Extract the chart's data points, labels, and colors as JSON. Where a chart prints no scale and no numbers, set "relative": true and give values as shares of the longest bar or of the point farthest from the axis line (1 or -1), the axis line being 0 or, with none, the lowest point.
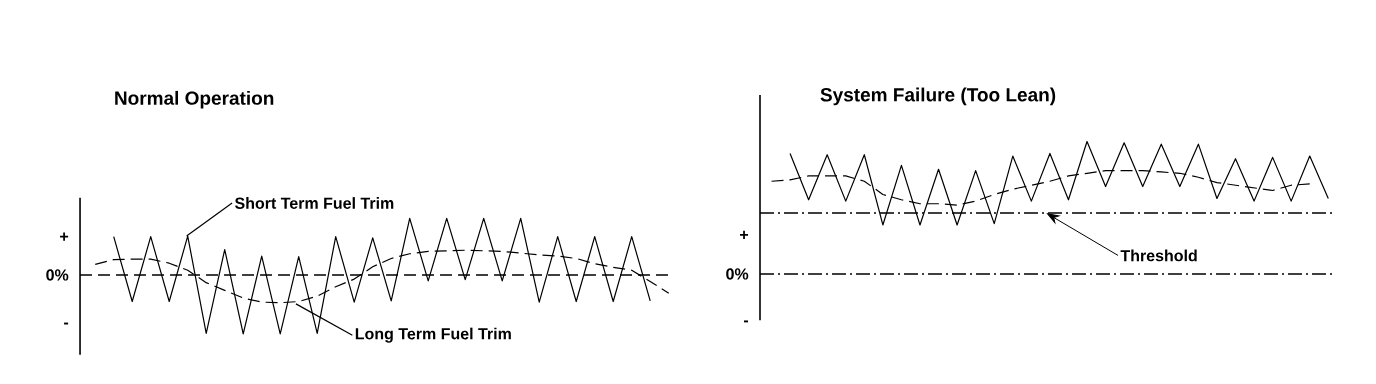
{
  "chart_data": [
    {
      "type": "line",
      "title": "Normal Operation",
      "relative": true,
      "legend": false,
      "categories": [
        null,
        null,
        null,
        null,
        null,
        null,
        null,
        null,
        null,
        null,
        null,
        null,
        null,
        null,
        null,
        null,
        null,
        null,
        null,
        null,
        null,
        null,
        null,
        null,
        null,
        null,
        null,
        null,
        null,
        null,
        null,
        null
      ],
      "series": [
        {
          "color": "#000000",
          "line_style": "solid",
          "values": [
            null,
            0.65,
            -0.45,
            0.65,
            -0.45,
            0.66,
            -0.99,
            0.43,
            -1,
            0.32,
            -1,
            0.31,
            -0.99,
            0.65,
            -0.46,
            0.63,
            -0.44,
            0.96,
            -0.1,
            0.96,
            -0.08,
            0.96,
            -0.1,
            0.96,
            -0.46,
            0.65,
            -0.45,
            0.65,
            -0.45,
            0.65,
            -0.44,
            null
          ]
        },
        {
          "color": "#000000",
          "line_style": "dashed",
          "values": [
            0.18,
            0.26,
            0.27,
            0.27,
            0.2,
            0.08,
            -0.13,
            -0.26,
            -0.39,
            -0.46,
            -0.47,
            -0.45,
            -0.36,
            -0.2,
            -0.07,
            0.14,
            0.28,
            0.36,
            0.4,
            0.41,
            0.42,
            0.41,
            0.4,
            0.37,
            0.34,
            0.32,
            0.28,
            0.19,
            0.13,
            0.08,
            -0.11,
            -0.31
          ]
        }
      ],
      "ref_lines": [
        {
          "axis": "y",
          "value": 0,
          "line_style": "dashed",
          "color": "#000000"
        }
      ],
      "annotations": [
        "+",
        "0%",
        "-",
        "Short Term Fuel Trim",
        "Long Term Fuel Trim"
      ]
    },
    {
      "type": "line",
      "title": "System Failure (Too Lean)",
      "relative": true,
      "legend": false,
      "categories": [
        null,
        null,
        null,
        null,
        null,
        null,
        null,
        null,
        null,
        null,
        null,
        null,
        null,
        null,
        null,
        null,
        null,
        null,
        null,
        null,
        null,
        null,
        null,
        null,
        null,
        null,
        null,
        null,
        null,
        null,
        null
      ],
      "series": [
        {
          "color": "#000000",
          "line_style": "solid",
          "values": [
            null,
            0.91,
            0.56,
            0.9,
            0.55,
            0.9,
            0.37,
            0.82,
            0.37,
            0.79,
            0.37,
            0.78,
            0.38,
            0.89,
            0.55,
            0.91,
            0.56,
            1,
            0.66,
            0.99,
            0.66,
            0.98,
            0.66,
            0.98,
            0.57,
            0.87,
            0.55,
            0.88,
            0.55,
            0.89,
            0.57
          ]
        },
        {
          "color": "#000000",
          "line_style": "dashed",
          "values": [
            0.7,
            0.71,
            0.74,
            0.74,
            0.74,
            0.7,
            0.6,
            0.56,
            0.53,
            0.53,
            0.52,
            0.55,
            0.6,
            0.64,
            0.67,
            0.7,
            0.74,
            0.76,
            0.78,
            0.78,
            0.78,
            0.77,
            0.76,
            0.73,
            0.69,
            0.67,
            0.65,
            0.63,
            0.67,
            0.68,
            null
          ]
        }
      ],
      "ref_lines": [
        {
          "axis": "y",
          "value": 0,
          "line_style": "dashdot",
          "color": "#000000"
        },
        {
          "axis": "y",
          "value": 0.46,
          "label": "Threshold",
          "line_style": "dashdot",
          "color": "#000000"
        }
      ],
      "annotations": [
        "+",
        "0%",
        "-"
      ]
    }
  ]
}
